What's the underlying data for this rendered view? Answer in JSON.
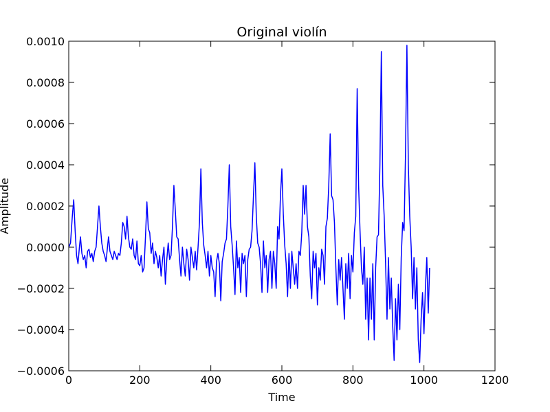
{
  "chart_data": {
    "type": "line",
    "title": "Original violín",
    "xlabel": "Time",
    "ylabel": "Amplitude",
    "xlim": [
      0,
      1200
    ],
    "ylim": [
      -0.0006,
      0.001
    ],
    "xticks": [
      0,
      200,
      400,
      600,
      800,
      1000,
      1200
    ],
    "xtick_labels": [
      "0",
      "200",
      "400",
      "600",
      "800",
      "1000",
      "1200"
    ],
    "yticks": [
      -0.0006,
      -0.0004,
      -0.0002,
      0.0,
      0.0002,
      0.0004,
      0.0006,
      0.0008,
      0.001
    ],
    "ytick_labels": [
      "−0.0006",
      "−0.0004",
      "−0.0002",
      "0.0000",
      "0.0002",
      "0.0004",
      "0.0006",
      "0.0008",
      "0.0010"
    ],
    "grid": false,
    "series": [
      {
        "color": "#0000ff",
        "points": [
          [
            0,
            0.0
          ],
          [
            5,
            2e-05
          ],
          [
            10,
            0.00015
          ],
          [
            14,
            0.00023
          ],
          [
            18,
            8e-05
          ],
          [
            22,
            -4e-05
          ],
          [
            26,
            -8e-05
          ],
          [
            30,
            0.0
          ],
          [
            33,
            5e-05
          ],
          [
            37,
            -3e-05
          ],
          [
            41,
            -6e-05
          ],
          [
            45,
            -4e-05
          ],
          [
            49,
            -0.0001
          ],
          [
            53,
            -2e-05
          ],
          [
            57,
            -1e-05
          ],
          [
            61,
            -5e-05
          ],
          [
            65,
            -3e-05
          ],
          [
            69,
            -7e-05
          ],
          [
            73,
            -2e-05
          ],
          [
            77,
            0.0
          ],
          [
            81,
            0.0001
          ],
          [
            85,
            0.0002
          ],
          [
            89,
            0.0001
          ],
          [
            93,
            2e-05
          ],
          [
            97,
            -2e-05
          ],
          [
            101,
            -4e-05
          ],
          [
            105,
            -7e-05
          ],
          [
            109,
            0.0
          ],
          [
            112,
            5e-05
          ],
          [
            116,
            -2e-05
          ],
          [
            120,
            -4e-05
          ],
          [
            124,
            -6e-05
          ],
          [
            128,
            -2e-05
          ],
          [
            132,
            -4e-05
          ],
          [
            136,
            -6e-05
          ],
          [
            140,
            -3e-05
          ],
          [
            144,
            -4e-05
          ],
          [
            148,
            2e-05
          ],
          [
            152,
            0.00012
          ],
          [
            156,
            0.0001
          ],
          [
            160,
            4e-05
          ],
          [
            164,
            0.00015
          ],
          [
            168,
            5e-05
          ],
          [
            172,
            0.0
          ],
          [
            176,
            -1e-05
          ],
          [
            180,
            4e-05
          ],
          [
            184,
            -4e-05
          ],
          [
            188,
            -6e-05
          ],
          [
            192,
            3e-05
          ],
          [
            196,
            -8e-05
          ],
          [
            200,
            -9e-05
          ],
          [
            204,
            -4e-05
          ],
          [
            208,
            -0.00012
          ],
          [
            212,
            -0.0001
          ],
          [
            216,
            5e-05
          ],
          [
            220,
            0.00022
          ],
          [
            224,
            9e-05
          ],
          [
            228,
            7e-05
          ],
          [
            232,
            -3e-05
          ],
          [
            236,
            2e-05
          ],
          [
            240,
            -8e-05
          ],
          [
            244,
            -2e-05
          ],
          [
            248,
            -5e-05
          ],
          [
            252,
            -0.0001
          ],
          [
            256,
            -4e-05
          ],
          [
            260,
            -0.00014
          ],
          [
            264,
            -6e-05
          ],
          [
            268,
            0.0
          ],
          [
            272,
            -0.00018
          ],
          [
            276,
            -6e-05
          ],
          [
            280,
            2e-05
          ],
          [
            284,
            -6e-05
          ],
          [
            288,
            -4e-05
          ],
          [
            292,
            0.0001
          ],
          [
            296,
            0.0003
          ],
          [
            300,
            0.00018
          ],
          [
            304,
            5e-05
          ],
          [
            308,
            4e-05
          ],
          [
            312,
            -6e-05
          ],
          [
            316,
            -0.00014
          ],
          [
            320,
            0.0
          ],
          [
            324,
            -8e-05
          ],
          [
            328,
            -0.00014
          ],
          [
            332,
            -1e-05
          ],
          [
            336,
            -6e-05
          ],
          [
            340,
            -0.00016
          ],
          [
            344,
            0.0
          ],
          [
            348,
            -5e-05
          ],
          [
            352,
            -0.0001
          ],
          [
            356,
            -2e-05
          ],
          [
            360,
            -0.00011
          ],
          [
            364,
            0.0
          ],
          [
            368,
            0.00012
          ],
          [
            372,
            0.00038
          ],
          [
            376,
            0.00012
          ],
          [
            380,
            1e-05
          ],
          [
            384,
            -4e-05
          ],
          [
            388,
            -0.0001
          ],
          [
            392,
            -2e-05
          ],
          [
            396,
            -0.00014
          ],
          [
            400,
            -4e-05
          ],
          [
            404,
            -0.0001
          ],
          [
            408,
            -0.00012
          ],
          [
            412,
            -0.00024
          ],
          [
            416,
            -7e-05
          ],
          [
            420,
            -3e-05
          ],
          [
            424,
            -8e-05
          ],
          [
            428,
            -0.00026
          ],
          [
            432,
            -7e-05
          ],
          [
            436,
            -3e-05
          ],
          [
            440,
            2e-05
          ],
          [
            444,
            4e-05
          ],
          [
            448,
            0.0002
          ],
          [
            452,
            0.0004
          ],
          [
            456,
            0.0001
          ],
          [
            460,
            1e-05
          ],
          [
            464,
            -0.0001
          ],
          [
            468,
            -0.00023
          ],
          [
            472,
            3e-05
          ],
          [
            476,
            -0.0001
          ],
          [
            480,
            -5e-05
          ],
          [
            484,
            -0.00022
          ],
          [
            488,
            -3e-05
          ],
          [
            492,
            -8e-05
          ],
          [
            496,
            -4e-05
          ],
          [
            500,
            -0.00024
          ],
          [
            504,
            -6e-05
          ],
          [
            508,
            -1e-05
          ],
          [
            512,
            0.0
          ],
          [
            516,
            8e-05
          ],
          [
            520,
            0.00025
          ],
          [
            524,
            0.00041
          ],
          [
            528,
            0.00015
          ],
          [
            532,
            2e-05
          ],
          [
            536,
            0.0
          ],
          [
            540,
            -8e-05
          ],
          [
            544,
            -0.00022
          ],
          [
            548,
            3e-05
          ],
          [
            552,
            -0.0001
          ],
          [
            556,
            -4e-05
          ],
          [
            560,
            -0.00022
          ],
          [
            564,
            -6e-05
          ],
          [
            568,
            -2e-05
          ],
          [
            572,
            -0.0002
          ],
          [
            576,
            -2e-05
          ],
          [
            580,
            -8e-05
          ],
          [
            584,
            -0.0002
          ],
          [
            588,
            0.0001
          ],
          [
            592,
            4e-05
          ],
          [
            596,
            0.00025
          ],
          [
            600,
            0.00038
          ],
          [
            604,
            0.00016
          ],
          [
            608,
            1e-05
          ],
          [
            612,
            -8e-05
          ],
          [
            616,
            -0.00024
          ],
          [
            620,
            -3e-05
          ],
          [
            624,
            -0.0002
          ],
          [
            628,
            -2e-05
          ],
          [
            632,
            -0.0001
          ],
          [
            636,
            -0.00018
          ],
          [
            640,
            -8e-05
          ],
          [
            644,
            -0.0002
          ],
          [
            648,
            -2e-05
          ],
          [
            652,
            -4e-05
          ],
          [
            656,
            7e-05
          ],
          [
            660,
            0.0003
          ],
          [
            664,
            0.00016
          ],
          [
            668,
            0.0003
          ],
          [
            672,
            0.0001
          ],
          [
            676,
            5e-05
          ],
          [
            680,
            -0.00014
          ],
          [
            684,
            -0.00025
          ],
          [
            688,
            -2e-05
          ],
          [
            692,
            -0.0001
          ],
          [
            696,
            -3e-05
          ],
          [
            700,
            -0.00028
          ],
          [
            704,
            -0.0001
          ],
          [
            708,
            -0.00016
          ],
          [
            712,
            -1e-05
          ],
          [
            716,
            -4e-05
          ],
          [
            720,
            -0.00018
          ],
          [
            724,
            0.0001
          ],
          [
            728,
            0.00014
          ],
          [
            732,
            0.0003
          ],
          [
            736,
            0.00055
          ],
          [
            740,
            0.00025
          ],
          [
            744,
            0.00023
          ],
          [
            748,
            0.00012
          ],
          [
            752,
            -0.0001
          ],
          [
            756,
            -0.00028
          ],
          [
            760,
            -6e-05
          ],
          [
            764,
            -0.00016
          ],
          [
            768,
            -5e-05
          ],
          [
            772,
            -0.0002
          ],
          [
            776,
            -0.00035
          ],
          [
            780,
            -8e-05
          ],
          [
            784,
            -0.0002
          ],
          [
            788,
            -3e-05
          ],
          [
            792,
            -0.00025
          ],
          [
            796,
            -4e-05
          ],
          [
            800,
            -0.00012
          ],
          [
            804,
            7e-05
          ],
          [
            808,
            0.00015
          ],
          [
            812,
            0.00077
          ],
          [
            816,
            0.0003
          ],
          [
            820,
            8e-05
          ],
          [
            824,
            -0.0001
          ],
          [
            828,
            -0.00018
          ],
          [
            832,
            0.0
          ],
          [
            836,
            -0.00035
          ],
          [
            840,
            -0.00015
          ],
          [
            844,
            -0.00045
          ],
          [
            848,
            -0.00015
          ],
          [
            852,
            -0.00035
          ],
          [
            856,
            -8e-05
          ],
          [
            860,
            -0.00045
          ],
          [
            864,
            -0.0001
          ],
          [
            868,
            5e-05
          ],
          [
            872,
            6e-05
          ],
          [
            876,
            0.0004
          ],
          [
            880,
            0.00095
          ],
          [
            884,
            0.0003
          ],
          [
            888,
            0.00015
          ],
          [
            892,
            -8e-05
          ],
          [
            896,
            -0.00035
          ],
          [
            900,
            -5e-05
          ],
          [
            904,
            -0.0003
          ],
          [
            908,
            -0.00015
          ],
          [
            912,
            -0.00038
          ],
          [
            916,
            -0.00055
          ],
          [
            920,
            -0.00025
          ],
          [
            924,
            -0.00045
          ],
          [
            928,
            -0.00018
          ],
          [
            932,
            -0.0004
          ],
          [
            936,
            -5e-05
          ],
          [
            940,
            0.00012
          ],
          [
            944,
            8e-05
          ],
          [
            948,
            0.00045
          ],
          [
            952,
            0.00098
          ],
          [
            956,
            0.0004
          ],
          [
            960,
            0.00015
          ],
          [
            964,
            0.0
          ],
          [
            968,
            -0.00025
          ],
          [
            972,
            -5e-05
          ],
          [
            976,
            -0.0003
          ],
          [
            980,
            -0.0001
          ],
          [
            984,
            -0.00045
          ],
          [
            988,
            -0.00056
          ],
          [
            992,
            -0.00035
          ],
          [
            996,
            -0.00022
          ],
          [
            1000,
            -0.00042
          ],
          [
            1004,
            -0.0002
          ],
          [
            1008,
            -5e-05
          ],
          [
            1012,
            -0.00032
          ],
          [
            1016,
            -0.0001
          ]
        ]
      }
    ]
  }
}
